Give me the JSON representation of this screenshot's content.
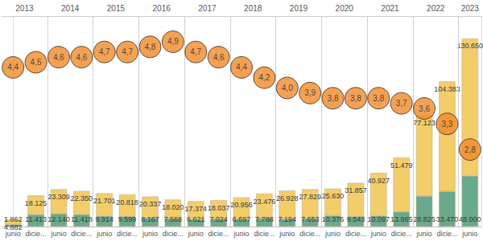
{
  "chart_data": {
    "type": "bar",
    "stacked": true,
    "data_labels": true,
    "grid": false,
    "tick_labels": "x",
    "categories": [
      "junio",
      "dicie...",
      "junio",
      "dicie...",
      "junio",
      "dicie...",
      "junio",
      "dicie...",
      "junio",
      "dicie...",
      "junio",
      "dicie...",
      "junio",
      "dicie...",
      "junio",
      "dicie...",
      "junio",
      "dicie...",
      "junio",
      "dicie...",
      "junio"
    ],
    "year_groups": [
      "2013",
      "2013",
      "2014",
      "2014",
      "2015",
      "2015",
      "2016",
      "2016",
      "2017",
      "2017",
      "2018",
      "2018",
      "2019",
      "2019",
      "2020",
      "2020",
      "2021",
      "2021",
      "2022",
      "2022",
      "2023"
    ],
    "ylim": [
      0,
      200000
    ],
    "y2lim": [
      1.3,
      5.4
    ],
    "series": [
      {
        "color": "#6aa98b",
        "values": [
          1862,
          11413,
          12140,
          11418,
          9914,
          9599,
          8167,
          7568,
          6621,
          7024,
          6697,
          7788,
          7194,
          7653,
          10376,
          9543,
          10097,
          13965,
          28825,
          33470,
          48000
        ],
        "value_labels": [
          "1.862",
          "11.413",
          "12.140",
          "11.418",
          "9.914",
          "9.599",
          "8.167",
          "7.568",
          "6.621",
          "7.024",
          "6.697",
          "7.788",
          "7.194",
          "7.653",
          "10.376",
          "9.543",
          "10.097",
          "13.965",
          "28.825",
          "33.470",
          "48.000"
        ]
      },
      {
        "color": "#f3cd6a",
        "values": [
          4882,
          18125,
          23309,
          22350,
          21701,
          20818,
          20337,
          18020,
          17374,
          18037,
          20956,
          23476,
          26928,
          27829,
          25630,
          31857,
          40927,
          51479,
          77123,
          104383,
          130650
        ],
        "value_labels": [
          "4.882",
          "18.125",
          "23.309",
          "22.350",
          "21.701",
          "20.818",
          "20.337",
          "18.020",
          "17.374",
          "18.037",
          "20.956",
          "23.476",
          "26.928",
          "27.829",
          "25.630",
          "31.857",
          "40.927",
          "51.479",
          "77.123",
          "104.383",
          "130.650"
        ]
      },
      {
        "type": "scatter",
        "axis": "y2",
        "color": "#f08a2a",
        "marker": "circle",
        "values": [
          4.4,
          4.5,
          4.6,
          4.6,
          4.7,
          4.7,
          4.8,
          4.9,
          4.7,
          4.6,
          4.4,
          4.2,
          4.0,
          3.9,
          3.8,
          3.8,
          3.8,
          3.7,
          3.6,
          3.3,
          2.8
        ],
        "value_labels": [
          "4,4",
          "4,5",
          "4,6",
          "4,6",
          "4,7",
          "4,7",
          "4,8",
          "4,9",
          "4,7",
          "4,6",
          "4,4",
          "4,2",
          "4,0",
          "3,9",
          "3,8",
          "3,8",
          "3,8",
          "3,7",
          "3,6",
          "3,3",
          "2,8"
        ]
      }
    ]
  }
}
